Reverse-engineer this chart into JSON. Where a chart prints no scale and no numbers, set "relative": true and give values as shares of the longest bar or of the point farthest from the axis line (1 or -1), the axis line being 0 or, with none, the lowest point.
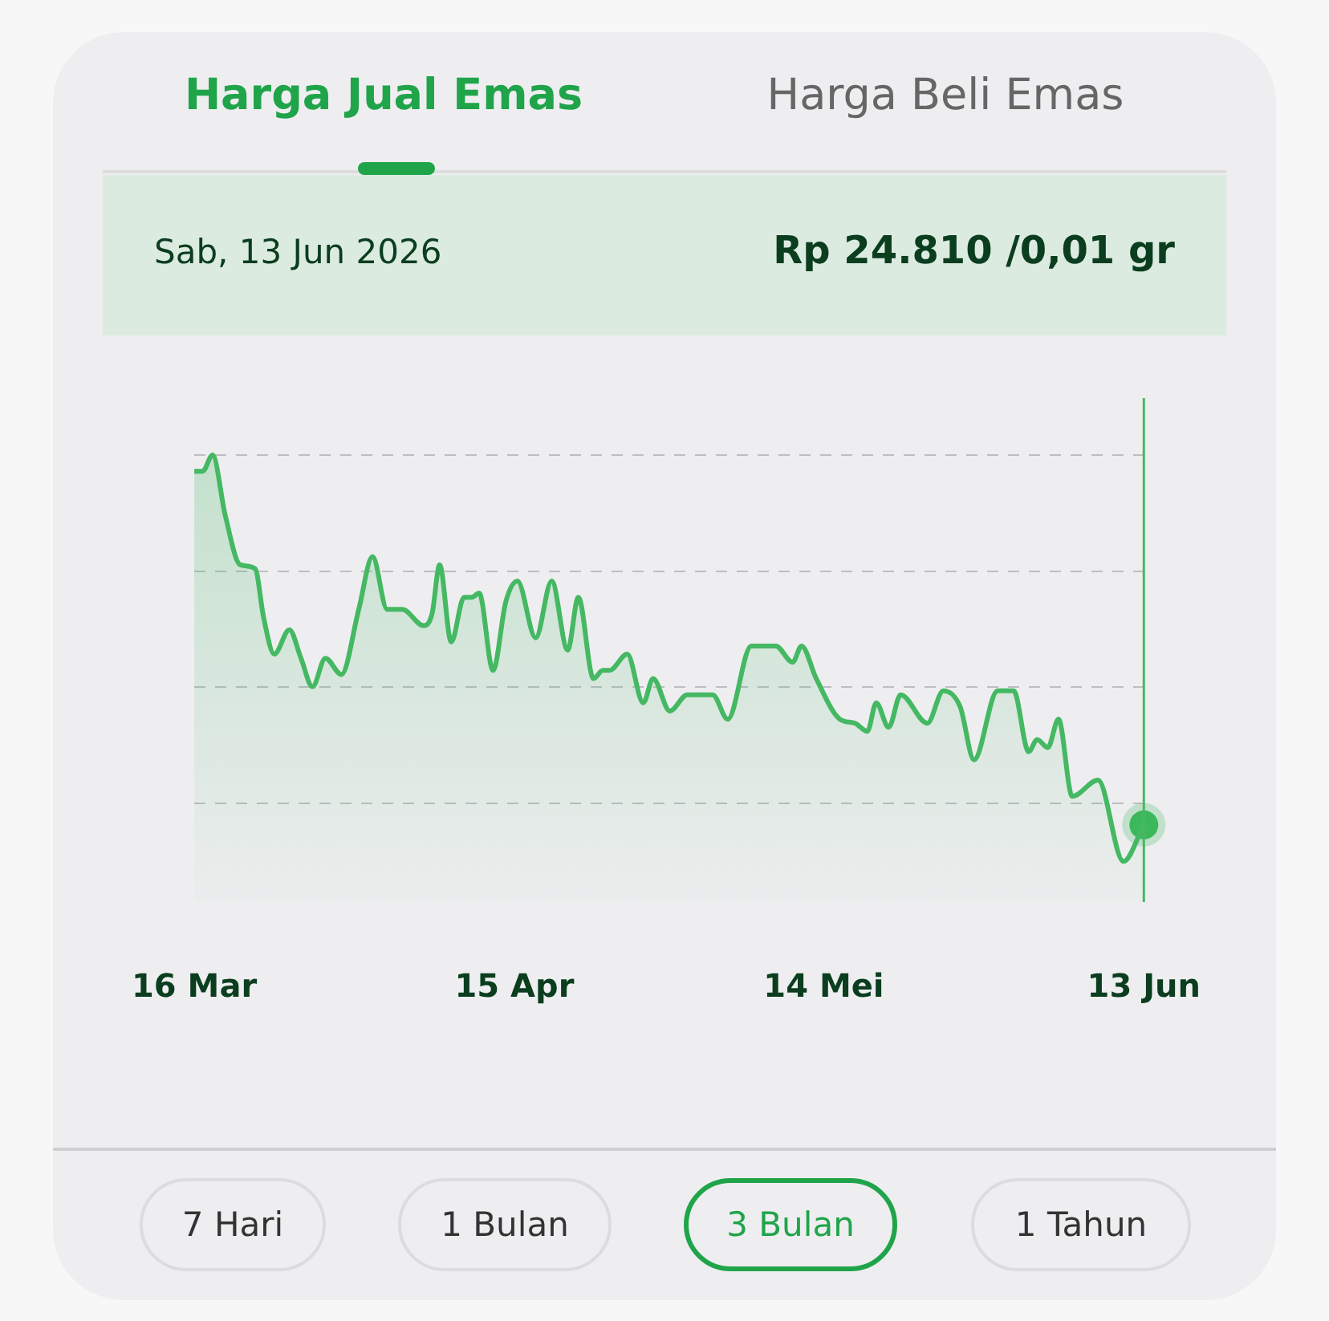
{
  "chart_data": {
    "type": "area",
    "title": "Harga Jual Emas",
    "relative": true,
    "grid": "y",
    "tick_labels": "x",
    "xlim": [
      "2026-03-16",
      "2026-06-13"
    ],
    "xticks": [
      {
        "value": "2026-03-16",
        "label": "16 Mar"
      },
      {
        "value": "2026-04-15",
        "label": "15 Apr"
      },
      {
        "value": "2026-05-14",
        "label": "14 Mei"
      },
      {
        "value": "2026-06-13",
        "label": "13 Jun"
      }
    ],
    "series": [
      {
        "color": "#45b863",
        "x": [
          "2026-03-16",
          "2026-03-16T19:00",
          "2026-03-17T17:00",
          "2026-03-18T22:00",
          "2026-03-20T07:00",
          "2026-03-21T17:00",
          "2026-03-22T12:00",
          "2026-03-23T12:00",
          "2026-03-24T22:00",
          "2026-03-26",
          "2026-03-27T02:00",
          "2026-03-28T07:00",
          "2026-03-29T19:00",
          "2026-03-31T10:00",
          "2026-04-01T17:00",
          "2026-04-03T02:00",
          "2026-04-04T12:00",
          "2026-04-06T12:00",
          "2026-04-07T07:00",
          "2026-04-08",
          "2026-04-09T02:00",
          "2026-04-10T07:00",
          "2026-04-11",
          "2026-04-11T17:00",
          "2026-04-13",
          "2026-04-14T05:00",
          "2026-04-15T07:00",
          "2026-04-17",
          "2026-04-18T12:00",
          "2026-04-20",
          "2026-04-21",
          "2026-04-22T10:00",
          "2026-04-23T07:00",
          "2026-04-23T22:00",
          "2026-04-25T14:00",
          "2026-04-27T02:00",
          "2026-04-28",
          "2026-04-29T14:00",
          "2026-05-01T05:00",
          "2026-05-03T14:00",
          "2026-05-05",
          "2026-05-07T05:00",
          "2026-05-09T12:00",
          "2026-05-11T02:00",
          "2026-05-11T22:00",
          "2026-05-13T07:00",
          "2026-05-15T12:00",
          "2026-05-16T22:00",
          "2026-05-18T02:00",
          "2026-05-18T22:00",
          "2026-05-20T02:00",
          "2026-05-21T05:00",
          "2026-05-23T17:00",
          "2026-05-25T05:00",
          "2026-05-26T19:00",
          "2026-05-28T02:00",
          "2026-05-30T07:00",
          "2026-05-31T19:00",
          "2026-06-02T05:00",
          "2026-06-03",
          "2026-06-04",
          "2026-06-05",
          "2026-06-06T07:00",
          "2026-06-08T17:00",
          "2026-06-11T02:00",
          "2026-06-13"
        ],
        "values": [
          0.96,
          0.96,
          1,
          0.85,
          0.73,
          0.72,
          0.6,
          0.51,
          0.57,
          0.5,
          0.43,
          0.5,
          0.46,
          0.62,
          0.75,
          0.62,
          0.62,
          0.58,
          0.61,
          0.73,
          0.54,
          0.65,
          0.65,
          0.66,
          0.47,
          0.64,
          0.69,
          0.55,
          0.69,
          0.52,
          0.65,
          0.45,
          0.47,
          0.47,
          0.51,
          0.39,
          0.45,
          0.37,
          0.41,
          0.41,
          0.35,
          0.53,
          0.53,
          0.49,
          0.53,
          0.45,
          0.35,
          0.34,
          0.32,
          0.39,
          0.33,
          0.41,
          0.34,
          0.42,
          0.38,
          0.25,
          0.42,
          0.42,
          0.27,
          0.3,
          0.28,
          0.35,
          0.16,
          0.2,
          0,
          0.09
        ]
      },
      {
        "type": "scatter",
        "color": "#3cb95a",
        "x": [
          "2026-06-13"
        ],
        "values": [
          0.09
        ]
      }
    ],
    "ref_lines": [
      {
        "axis": "x",
        "value": "2026-06-13",
        "color": "#45b863"
      }
    ],
    "annotations": [
      "Harga Beli Emas",
      "Sab, 13 Jun 2026",
      "Rp 24.810 /0,01 gr",
      "7 Hari",
      "1 Bulan",
      "3 Bulan",
      "1 Tahun"
    ]
  }
}
